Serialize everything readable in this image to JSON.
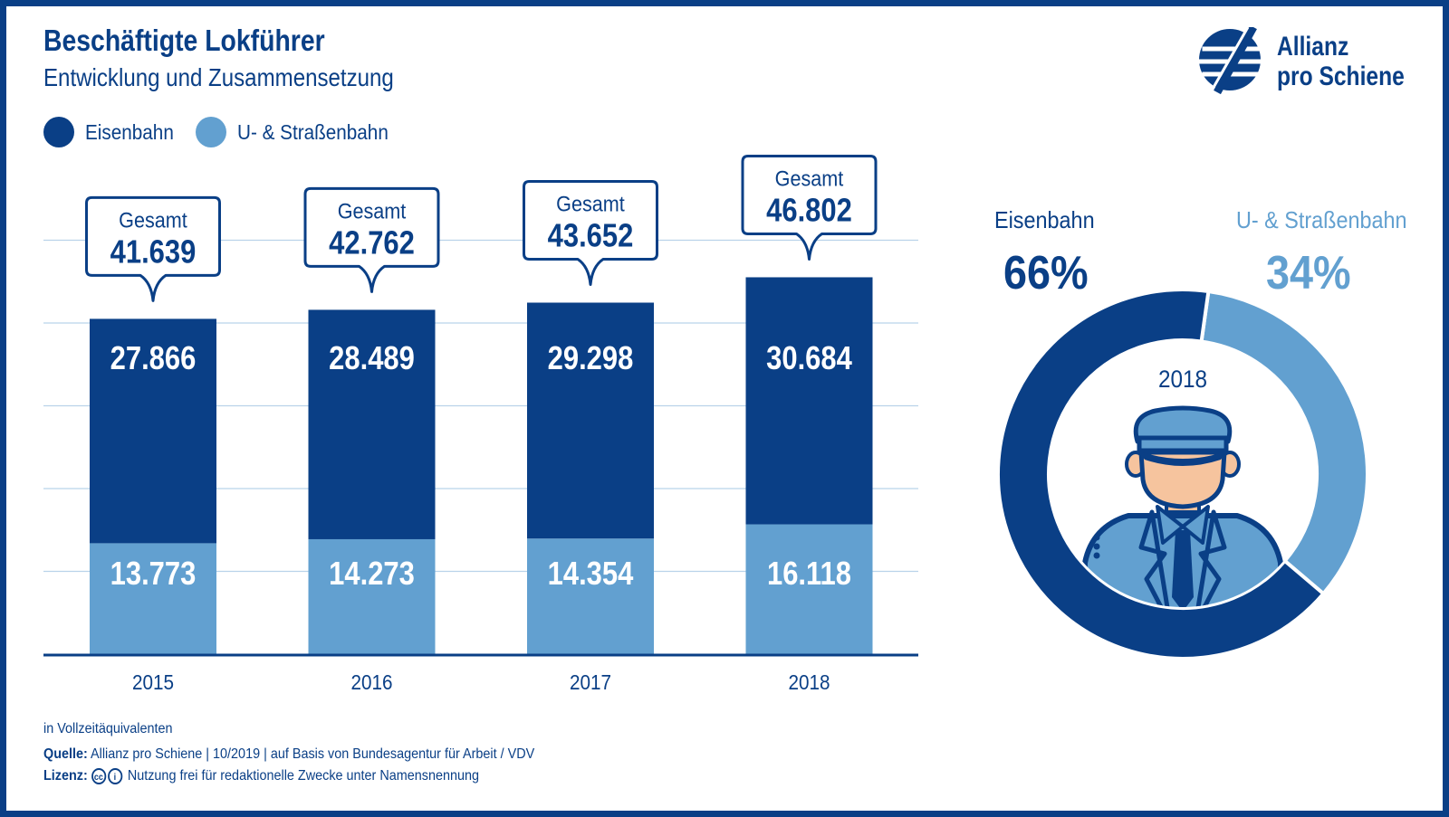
{
  "header": {
    "title": "Beschäftigte Lokführer",
    "subtitle": "Entwicklung und Zusammensetzung"
  },
  "logo": {
    "line1": "Allianz",
    "line2": "pro Schiene"
  },
  "legend": [
    {
      "label": "Eisenbahn",
      "color": "#0a3f86"
    },
    {
      "label": "U- & Straßenbahn",
      "color": "#62a0d0"
    }
  ],
  "chart_data": [
    {
      "type": "bar",
      "stacked": true,
      "categories": [
        "2015",
        "2016",
        "2017",
        "2018"
      ],
      "series": [
        {
          "name": "U- & Straßenbahn",
          "values": [
            13773,
            14273,
            14354,
            16118
          ],
          "labels": [
            "13.773",
            "14.273",
            "14.354",
            "16.118"
          ],
          "color": "#62a0d0"
        },
        {
          "name": "Eisenbahn",
          "values": [
            27866,
            28489,
            29298,
            30684
          ],
          "labels": [
            "27.866",
            "28.489",
            "29.298",
            "30.684"
          ],
          "color": "#0a3f86"
        }
      ],
      "totals": {
        "label": "Gesamt",
        "values": [
          "41.639",
          "42.762",
          "43.652",
          "46.802"
        ]
      },
      "ylim": [
        0,
        50000
      ],
      "grid": true,
      "unit_note": "in Vollzeitäquivalenten"
    },
    {
      "type": "pie",
      "variant": "donut",
      "center_label": "2018",
      "slices": [
        {
          "name": "Eisenbahn",
          "value": 66,
          "label": "66%",
          "color": "#0a3f86"
        },
        {
          "name": "U- & Straßenbahn",
          "value": 34,
          "label": "34%",
          "color": "#62a0d0"
        }
      ]
    }
  ],
  "footer": {
    "quelle_label": "Quelle:",
    "quelle_text": "Allianz pro Schiene | 10/2019 | auf Basis von Bundesagentur für Arbeit / VDV",
    "lizenz_label": "Lizenz:",
    "cc_icon": "cc",
    "lizenz_text": "Nutzung frei für redaktionelle Zwecke unter Namensnennung"
  }
}
